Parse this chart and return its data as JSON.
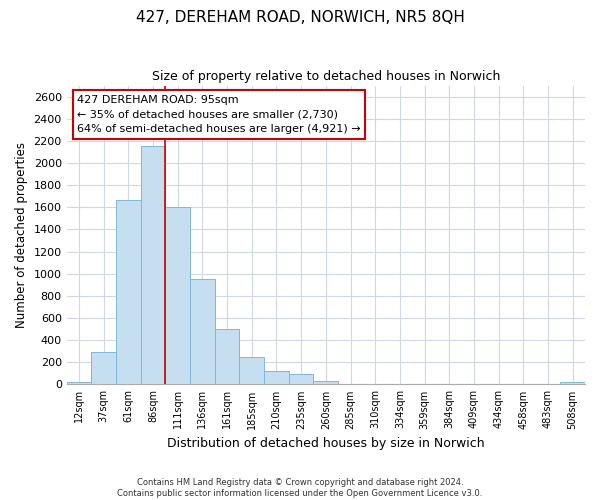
{
  "title": "427, DEREHAM ROAD, NORWICH, NR5 8QH",
  "subtitle": "Size of property relative to detached houses in Norwich",
  "xlabel": "Distribution of detached houses by size in Norwich",
  "ylabel": "Number of detached properties",
  "bar_labels": [
    "12sqm",
    "37sqm",
    "61sqm",
    "86sqm",
    "111sqm",
    "136sqm",
    "161sqm",
    "185sqm",
    "210sqm",
    "235sqm",
    "260sqm",
    "285sqm",
    "310sqm",
    "334sqm",
    "359sqm",
    "384sqm",
    "409sqm",
    "434sqm",
    "458sqm",
    "483sqm",
    "508sqm"
  ],
  "bar_values": [
    20,
    295,
    1670,
    2150,
    1605,
    955,
    505,
    250,
    120,
    95,
    30,
    0,
    0,
    0,
    0,
    0,
    0,
    0,
    0,
    0,
    18
  ],
  "bar_color": "#c6dff0",
  "bar_edge_color": "#7fb8d8",
  "ylim": [
    0,
    2700
  ],
  "yticks": [
    0,
    200,
    400,
    600,
    800,
    1000,
    1200,
    1400,
    1600,
    1800,
    2000,
    2200,
    2400,
    2600
  ],
  "vline_x": 4.0,
  "vline_color": "#cc0000",
  "annotation_title": "427 DEREHAM ROAD: 95sqm",
  "annotation_line1": "← 35% of detached houses are smaller (2,730)",
  "annotation_line2": "64% of semi-detached houses are larger (4,921) →",
  "footer1": "Contains HM Land Registry data © Crown copyright and database right 2024.",
  "footer2": "Contains public sector information licensed under the Open Government Licence v3.0.",
  "background_color": "#ffffff",
  "grid_color": "#d0d8e8"
}
